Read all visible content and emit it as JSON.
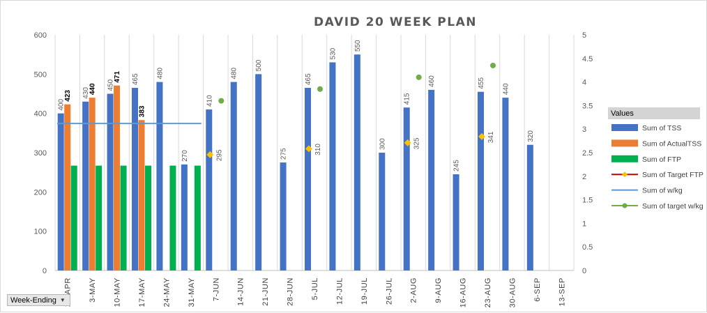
{
  "filter": {
    "label": "Week-Ending",
    "arrow_icon": "dropdown-arrow-icon"
  },
  "chart_data": {
    "type": "bar",
    "title": "DAVID 20 WEEK PLAN",
    "categories": [
      "26-APR",
      "3-MAY",
      "10-MAY",
      "17-MAY",
      "24-MAY",
      "31-MAY",
      "7-JUN",
      "14-JUN",
      "21-JUN",
      "28-JUN",
      "5-JUL",
      "12-JUL",
      "19-JUL",
      "26-JUL",
      "2-AUG",
      "9-AUG",
      "16-AUG",
      "23-AUG",
      "30-AUG",
      "6-SEP",
      "13-SEP"
    ],
    "ylim": [
      0,
      600
    ],
    "yticks": [
      "0",
      "100",
      "200",
      "300",
      "400",
      "500",
      "600"
    ],
    "y2lim": [
      0,
      5
    ],
    "y2ticks": [
      "0",
      "0.5",
      "1",
      "1.5",
      "2",
      "2.5",
      "3",
      "3.5",
      "4",
      "4.5",
      "5"
    ],
    "gridlines": "vertical category separators",
    "legend": {
      "title": "Values",
      "position": "right",
      "entries": [
        "Sum of TSS",
        "Sum of ActualTSS",
        "Sum of FTP",
        "Sum of Target FTP",
        "Sum of w/kg",
        "Sum of target w/kg"
      ]
    },
    "series": [
      {
        "name": "Sum of TSS",
        "type": "bar",
        "axis": "primary",
        "color": "#4472c4",
        "values": [
          400,
          430,
          450,
          465,
          480,
          270,
          410,
          480,
          500,
          275,
          465,
          530,
          550,
          300,
          415,
          460,
          245,
          455,
          440,
          320,
          null
        ],
        "labels": [
          "400",
          "430",
          "450",
          "465",
          "480",
          "270",
          "410",
          "480",
          "500",
          "275",
          "465",
          "530",
          "550",
          "300",
          "415",
          "460",
          "245",
          "455",
          "440",
          "320",
          ""
        ]
      },
      {
        "name": "Sum of ActualTSS",
        "type": "bar",
        "axis": "primary",
        "color": "#ed7d31",
        "values": [
          423,
          440,
          471,
          383,
          null,
          null,
          null,
          null,
          null,
          null,
          null,
          null,
          null,
          null,
          null,
          null,
          null,
          null,
          null,
          null,
          null
        ],
        "labels": [
          "423",
          "440",
          "471",
          "383",
          "",
          "",
          "",
          "",
          "",
          "",
          "",
          "",
          "",
          "",
          "",
          "",
          "",
          "",
          "",
          "",
          ""
        ]
      },
      {
        "name": "Sum of FTP",
        "type": "bar",
        "axis": "primary",
        "color": "#00b050",
        "values": [
          267,
          267,
          267,
          267,
          267,
          267,
          null,
          null,
          null,
          null,
          null,
          null,
          null,
          null,
          null,
          null,
          null,
          null,
          null,
          null,
          null
        ]
      },
      {
        "name": "Sum of Target FTP",
        "type": "marker",
        "axis": "primary",
        "color": "#ffc000",
        "line_color": "#c00000",
        "values": [
          null,
          null,
          null,
          null,
          null,
          null,
          295,
          null,
          null,
          null,
          310,
          null,
          null,
          null,
          325,
          null,
          null,
          341,
          null,
          null,
          null
        ],
        "labels": [
          "",
          "",
          "",
          "",
          "",
          "",
          "295",
          "",
          "",
          "",
          "310",
          "",
          "",
          "",
          "325",
          "",
          "",
          "341",
          "",
          "",
          ""
        ]
      },
      {
        "name": "Sum of w/kg",
        "type": "line",
        "axis": "secondary",
        "color": "#5b9bd5",
        "values": [
          3.12,
          3.12,
          3.12,
          3.12,
          3.12,
          3.12,
          null,
          null,
          null,
          null,
          null,
          null,
          null,
          null,
          null,
          null,
          null,
          null,
          null,
          null,
          null
        ]
      },
      {
        "name": "Sum of target w/kg",
        "type": "marker",
        "axis": "secondary",
        "color": "#70ad47",
        "values": [
          null,
          null,
          null,
          null,
          null,
          null,
          3.6,
          null,
          null,
          null,
          3.85,
          null,
          null,
          null,
          4.1,
          null,
          null,
          4.35,
          null,
          null,
          null
        ]
      }
    ]
  }
}
